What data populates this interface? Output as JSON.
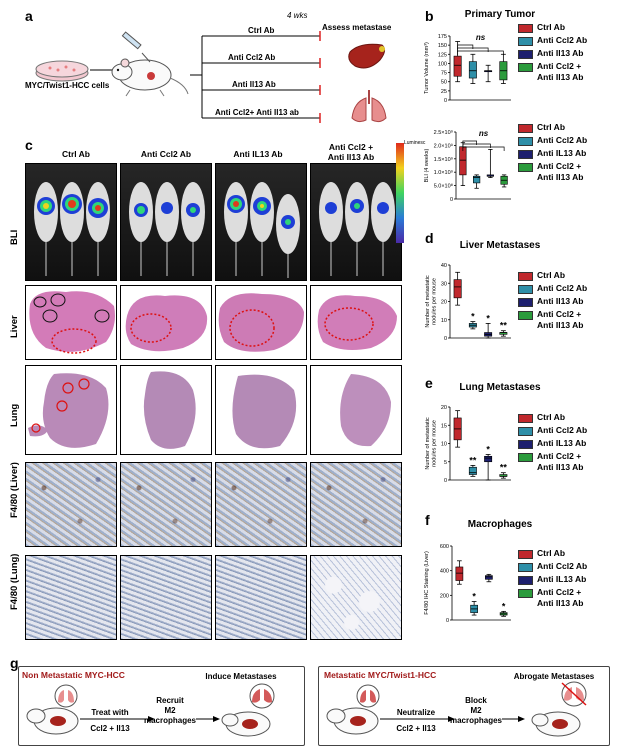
{
  "figure": {
    "panels": {
      "a": "a",
      "b": "b",
      "c": "c",
      "d": "d",
      "e": "e",
      "f": "f",
      "g": "g"
    },
    "panel_a": {
      "cells_label": "MYC/Twist1-HCC cells",
      "duration_label": "4 wks",
      "outcome_label": "Assess metastase",
      "treatments": [
        "Ctrl Ab",
        "Anti Ccl2 Ab",
        "Anti Il13 Ab",
        "Anti Ccl2+ Anti Il13 ab"
      ]
    },
    "panel_c": {
      "columns": [
        "Ctrl Ab",
        "Anti Ccl2 Ab",
        "Anti IL13 Ab",
        "Anti  Ccl2 +\nAnti Il13 Ab"
      ],
      "rows": [
        "BLI",
        "Liver",
        "Lung",
        "F4/80 (Liver)",
        "F4/80 (Lung)"
      ],
      "colorbar_label": "Luminesc"
    },
    "panel_g": {
      "left_title": "Non Metastatic MYC-HCC",
      "left_step1": "Treat with",
      "left_step1b": "Ccl2 + Il13",
      "left_step2": "Recruit\nM2\nmacrophages",
      "left_result": "Induce Metastases",
      "right_title": "Metastatic MYC/Twist1-HCC",
      "right_step1": "Neutralize",
      "right_step1b": "Ccl2 + Il13",
      "right_step2": "Block\nM2\nmacrophages",
      "right_result": "Abrogate Metastases"
    }
  },
  "legend_colors": {
    "ctrl": "#c0282d",
    "ccl2": "#2e8fa8",
    "il13": "#1d1f6e",
    "combo": "#2b9b3c"
  },
  "chart_data": [
    {
      "id": "b1",
      "type": "box",
      "title": "Primary Tumor",
      "ylabel": "Tumor Volume (mm³)",
      "ylim": [
        0,
        175
      ],
      "yticks": [
        0,
        25,
        50,
        75,
        100,
        125,
        150,
        175
      ],
      "significance": "ns",
      "series": [
        {
          "name": "Ctrl Ab",
          "min": 50,
          "q1": 65,
          "median": 95,
          "q3": 120,
          "max": 160
        },
        {
          "name": "Anti Ccl2 Ab",
          "min": 45,
          "q1": 60,
          "median": 80,
          "q3": 105,
          "max": 125
        },
        {
          "name": "Anti Il13 Ab",
          "min": 50,
          "q1": 80,
          "median": 80,
          "q3": 80,
          "max": 95
        },
        {
          "name": "Anti  Ccl2 +\nAnti Il13 Ab",
          "min": 45,
          "q1": 55,
          "median": 80,
          "q3": 105,
          "max": 125
        }
      ]
    },
    {
      "id": "b2",
      "type": "box",
      "ylabel": "BLI (4 weeks)",
      "ylim": [
        0,
        2500000000
      ],
      "ytick_labels": [
        "0",
        "5.0×10⁸",
        "1.0×10⁹",
        "1.5×10⁹",
        "2.0×10⁹",
        "2.5×10⁹"
      ],
      "significance": "ns",
      "series": [
        {
          "name": "Ctrl Ab",
          "min": 500000000,
          "q1": 900000000,
          "median": 1450000000,
          "q3": 1950000000,
          "max": 2100000000
        },
        {
          "name": "Anti Ccl2 Ab",
          "min": 400000000,
          "q1": 600000000,
          "median": 800000000,
          "q3": 850000000,
          "max": 900000000
        },
        {
          "name": "Anti IL13 Ab",
          "min": 800000000,
          "q1": 850000000,
          "median": 850000000,
          "q3": 900000000,
          "max": 1850000000
        },
        {
          "name": "Anti  Ccl2 +\nAnti Il13 Ab",
          "min": 450000000,
          "q1": 550000000,
          "median": 700000000,
          "q3": 850000000,
          "max": 900000000
        }
      ]
    },
    {
      "id": "d",
      "type": "box",
      "title": "Liver Metastases",
      "ylabel": "Number of metastatic\nnodules per mouse",
      "ylim": [
        0,
        40
      ],
      "yticks": [
        0,
        10,
        20,
        30,
        40
      ],
      "series": [
        {
          "name": "Ctrl Ab",
          "min": 18,
          "q1": 22,
          "median": 28,
          "q3": 32,
          "max": 36,
          "sig": ""
        },
        {
          "name": "Anti Ccl2 Ab",
          "min": 5,
          "q1": 6,
          "median": 7,
          "q3": 8,
          "max": 9,
          "sig": "*"
        },
        {
          "name": "Anti Il13 Ab",
          "min": 0,
          "q1": 1,
          "median": 2,
          "q3": 3,
          "max": 8,
          "sig": "*"
        },
        {
          "name": "Anti  Ccl2 +\nAnti Il13 Ab",
          "min": 1,
          "q1": 2,
          "median": 3,
          "q3": 3,
          "max": 4,
          "sig": "**"
        }
      ]
    },
    {
      "id": "e",
      "type": "box",
      "title": "Lung Metastases",
      "ylabel": "Number of metastatic\nnodules per mouse",
      "ylim": [
        0,
        20
      ],
      "yticks": [
        0,
        5,
        10,
        15,
        20
      ],
      "series": [
        {
          "name": "Ctrl Ab",
          "min": 9,
          "q1": 11,
          "median": 14,
          "q3": 17,
          "max": 19,
          "sig": ""
        },
        {
          "name": "Anti Ccl2 Ab",
          "min": 1,
          "q1": 1.5,
          "median": 2,
          "q3": 3.5,
          "max": 4,
          "sig": "**"
        },
        {
          "name": "Anti IL13 Ab",
          "min": 0,
          "q1": 5,
          "median": 6,
          "q3": 6.5,
          "max": 7,
          "sig": "*"
        },
        {
          "name": "Anti  Ccl2 +\nAnti Il13 Ab",
          "min": 0.5,
          "q1": 1,
          "median": 1,
          "q3": 1.5,
          "max": 2,
          "sig": "**"
        }
      ]
    },
    {
      "id": "f",
      "type": "box",
      "title": "Macrophages",
      "ylabel": "F4/80 IHC Staining (Liver)",
      "ylim": [
        0,
        600
      ],
      "yticks": [
        0,
        200,
        400,
        600
      ],
      "series": [
        {
          "name": "Ctrl Ab",
          "min": 290,
          "q1": 320,
          "median": 380,
          "q3": 430,
          "max": 480,
          "sig": ""
        },
        {
          "name": "Anti Ccl2 Ab",
          "min": 40,
          "q1": 60,
          "median": 90,
          "q3": 120,
          "max": 150,
          "sig": "*"
        },
        {
          "name": "Anti IL13 Ab",
          "min": 310,
          "q1": 330,
          "median": 350,
          "q3": 360,
          "max": 370,
          "sig": ""
        },
        {
          "name": "Anti  Ccl2 +\nAnti Il13 Ab",
          "min": 30,
          "q1": 40,
          "median": 50,
          "q3": 60,
          "max": 70,
          "sig": "*"
        }
      ]
    }
  ],
  "legends": {
    "b1": [
      "Ctrl Ab",
      "Anti Ccl2 Ab",
      "Anti Il13 Ab",
      "Anti  Ccl2 +\nAnti Il13 Ab"
    ],
    "b2": [
      "Ctrl Ab",
      "Anti Ccl2 Ab",
      "Anti IL13 Ab",
      "Anti  Ccl2 +\nAnti Il13 Ab"
    ],
    "d": [
      "Ctrl Ab",
      "Anti Ccl2 Ab",
      "Anti Il13 Ab",
      "Anti  Ccl2 +\nAnti Il13 Ab"
    ],
    "e": [
      "Ctrl Ab",
      "Anti Ccl2 Ab",
      "Anti IL13 Ab",
      "Anti  Ccl2 +\nAnti Il13 Ab"
    ],
    "f": [
      "Ctrl Ab",
      "Anti Ccl2 Ab",
      "Anti IL13 Ab",
      "Anti  Ccl2 +\nAnti Il13 Ab"
    ]
  }
}
